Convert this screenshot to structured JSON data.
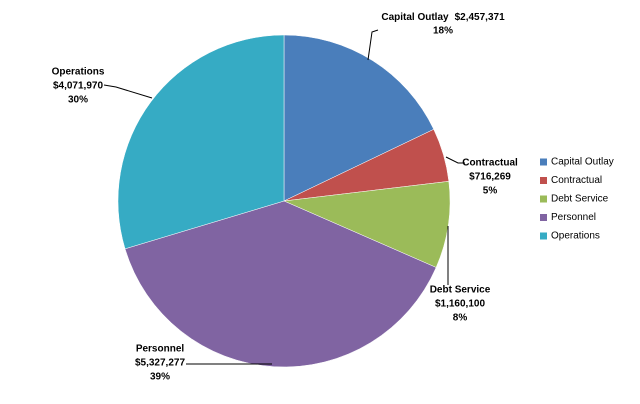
{
  "chart_data": {
    "type": "pie",
    "categories": [
      "Capital Outlay",
      "Contractual",
      "Debt Service",
      "Personnel",
      "Operations"
    ],
    "values": [
      2457371,
      716269,
      1160100,
      5327277,
      4071970
    ],
    "value_labels": [
      "$2,457,371",
      "$716,269",
      "$1,160,100",
      "$5,327,277",
      "$4,071,970"
    ],
    "percent_labels": [
      "18%",
      "5%",
      "8%",
      "39%",
      "30%"
    ],
    "colors": [
      "#4a7ebb",
      "#c0504d",
      "#9bbb59",
      "#8064a2",
      "#36abc4"
    ],
    "legend": "right"
  }
}
